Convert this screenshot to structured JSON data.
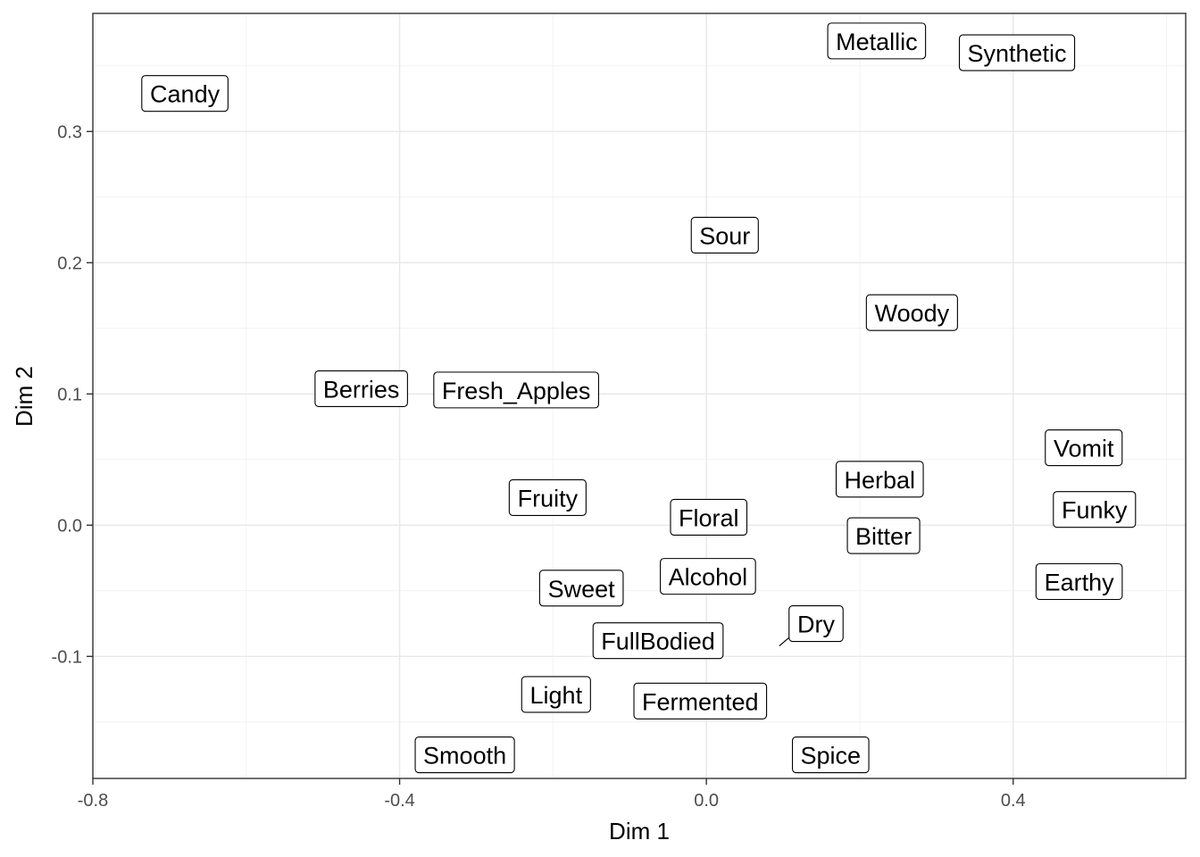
{
  "chart_data": {
    "type": "scatter",
    "xlabel": "Dim 1",
    "ylabel": "Dim 2",
    "xlim": [
      -0.8,
      0.625
    ],
    "ylim": [
      -0.193,
      0.39
    ],
    "x_ticks": [
      -0.8,
      -0.4,
      0.0,
      0.4
    ],
    "x_tick_labels": [
      "-0.8",
      "-0.4",
      "0.0",
      "0.4"
    ],
    "y_ticks": [
      -0.1,
      0.0,
      0.1,
      0.2,
      0.3
    ],
    "y_tick_labels": [
      "-0.1",
      "0.0",
      "0.1",
      "0.2",
      "0.3"
    ],
    "grid": true,
    "theme": "bw",
    "points": [
      {
        "label": "Candy",
        "x": -0.68,
        "y": 0.329
      },
      {
        "label": "Metallic",
        "x": 0.222,
        "y": 0.369
      },
      {
        "label": "Synthetic",
        "x": 0.405,
        "y": 0.36
      },
      {
        "label": "Sour",
        "x": 0.024,
        "y": 0.221
      },
      {
        "label": "Woody",
        "x": 0.268,
        "y": 0.162
      },
      {
        "label": "Berries",
        "x": -0.45,
        "y": 0.104
      },
      {
        "label": "Fresh_Apples",
        "x": -0.248,
        "y": 0.103
      },
      {
        "label": "Vomit",
        "x": 0.492,
        "y": 0.059
      },
      {
        "label": "Herbal",
        "x": 0.226,
        "y": 0.035
      },
      {
        "label": "Fruity",
        "x": -0.207,
        "y": 0.021
      },
      {
        "label": "Floral",
        "x": 0.003,
        "y": 0.006
      },
      {
        "label": "Funky",
        "x": 0.506,
        "y": 0.012
      },
      {
        "label": "Bitter",
        "x": 0.231,
        "y": -0.008
      },
      {
        "label": "Alcohol",
        "x": 0.002,
        "y": -0.039
      },
      {
        "label": "Sweet",
        "x": -0.163,
        "y": -0.048
      },
      {
        "label": "Earthy",
        "x": 0.486,
        "y": -0.043
      },
      {
        "label": "Dry",
        "x": 0.095,
        "y": -0.092,
        "label_x": 0.143,
        "label_y": -0.075
      },
      {
        "label": "FullBodied",
        "x": -0.063,
        "y": -0.088
      },
      {
        "label": "Light",
        "x": -0.196,
        "y": -0.129
      },
      {
        "label": "Fermented",
        "x": -0.008,
        "y": -0.134
      },
      {
        "label": "Smooth",
        "x": -0.315,
        "y": -0.175
      },
      {
        "label": "Spice",
        "x": 0.162,
        "y": -0.175
      }
    ]
  }
}
